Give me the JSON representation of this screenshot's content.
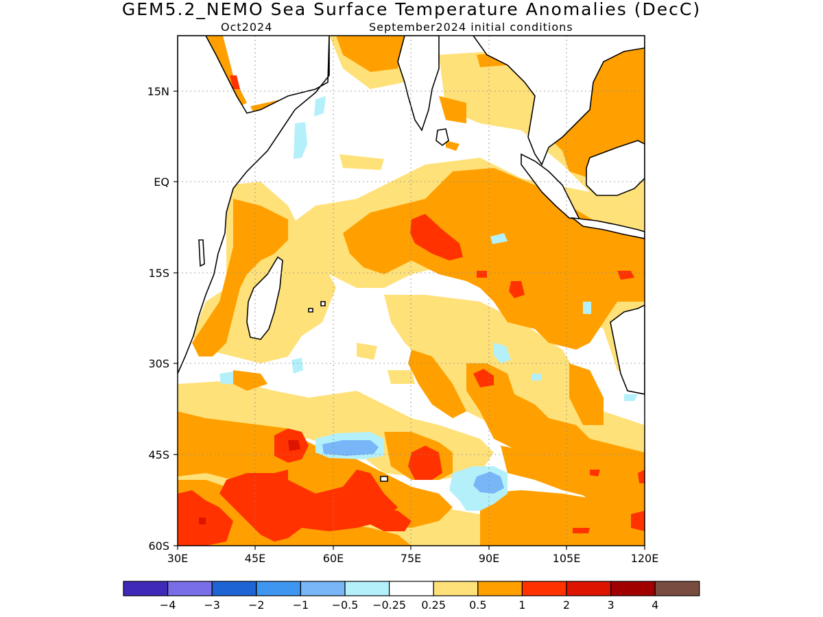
{
  "header": {
    "title": "GEM5.2_NEMO Sea Surface Temperature Anomalies (DecC)",
    "valid_month": "Oct2024",
    "init_label": "September2024 initial conditions"
  },
  "map": {
    "lon_labels": [
      "30E",
      "45E",
      "60E",
      "75E",
      "90E",
      "105E",
      "120E"
    ],
    "lat_labels": [
      "15N",
      "EQ",
      "15S",
      "30S",
      "45S",
      "60S"
    ],
    "grid": true
  },
  "colorbar": {
    "colors": [
      "#3f2ab8",
      "#7a6ee8",
      "#1f64d4",
      "#3f96f0",
      "#78b6f8",
      "#b4f0fa",
      "#ffffff",
      "#ffe17a",
      "#ffa000",
      "#ff3200",
      "#dc1400",
      "#a00000",
      "#784c3e"
    ],
    "tick_labels": [
      "-4",
      "-3",
      "-2",
      "-1",
      "-0.5",
      "-0.25",
      "0.25",
      "0.5",
      "1",
      "2",
      "3",
      "4"
    ]
  },
  "legend_colors": {
    "c025": "#ffe17a",
    "c05": "#ffa000",
    "c1": "#ff3200",
    "c2": "#dc1400",
    "neg025": "#b4f0fa",
    "neg1": "#78b6f8"
  }
}
